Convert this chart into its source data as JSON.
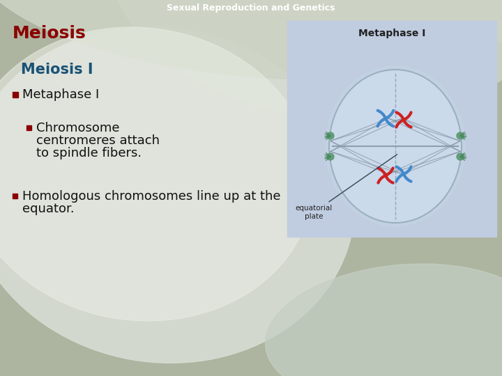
{
  "header_text": "Sexual Reproduction and Genetics",
  "header_color": "#ffffff",
  "title_text": "Meiosis",
  "title_color": "#8B0000",
  "subtitle_text": "Meiosis I",
  "subtitle_color": "#1a5276",
  "bullet1_marker": "■",
  "bullet1_text": "Metaphase I",
  "bullet1_color": "#111111",
  "bullet2_marker": "■",
  "bullet2_line1": "Chromosome",
  "bullet2_line2": "centromeres attach",
  "bullet2_line3": "to spindle fibers.",
  "bullet2_color": "#111111",
  "bullet3_marker": "■",
  "bullet3_line1": "Homologous chromosomes line up at the",
  "bullet3_line2": "equator.",
  "bullet3_color": "#111111",
  "image_title": "Metaphase I",
  "image_label": "equatorial\nplate"
}
